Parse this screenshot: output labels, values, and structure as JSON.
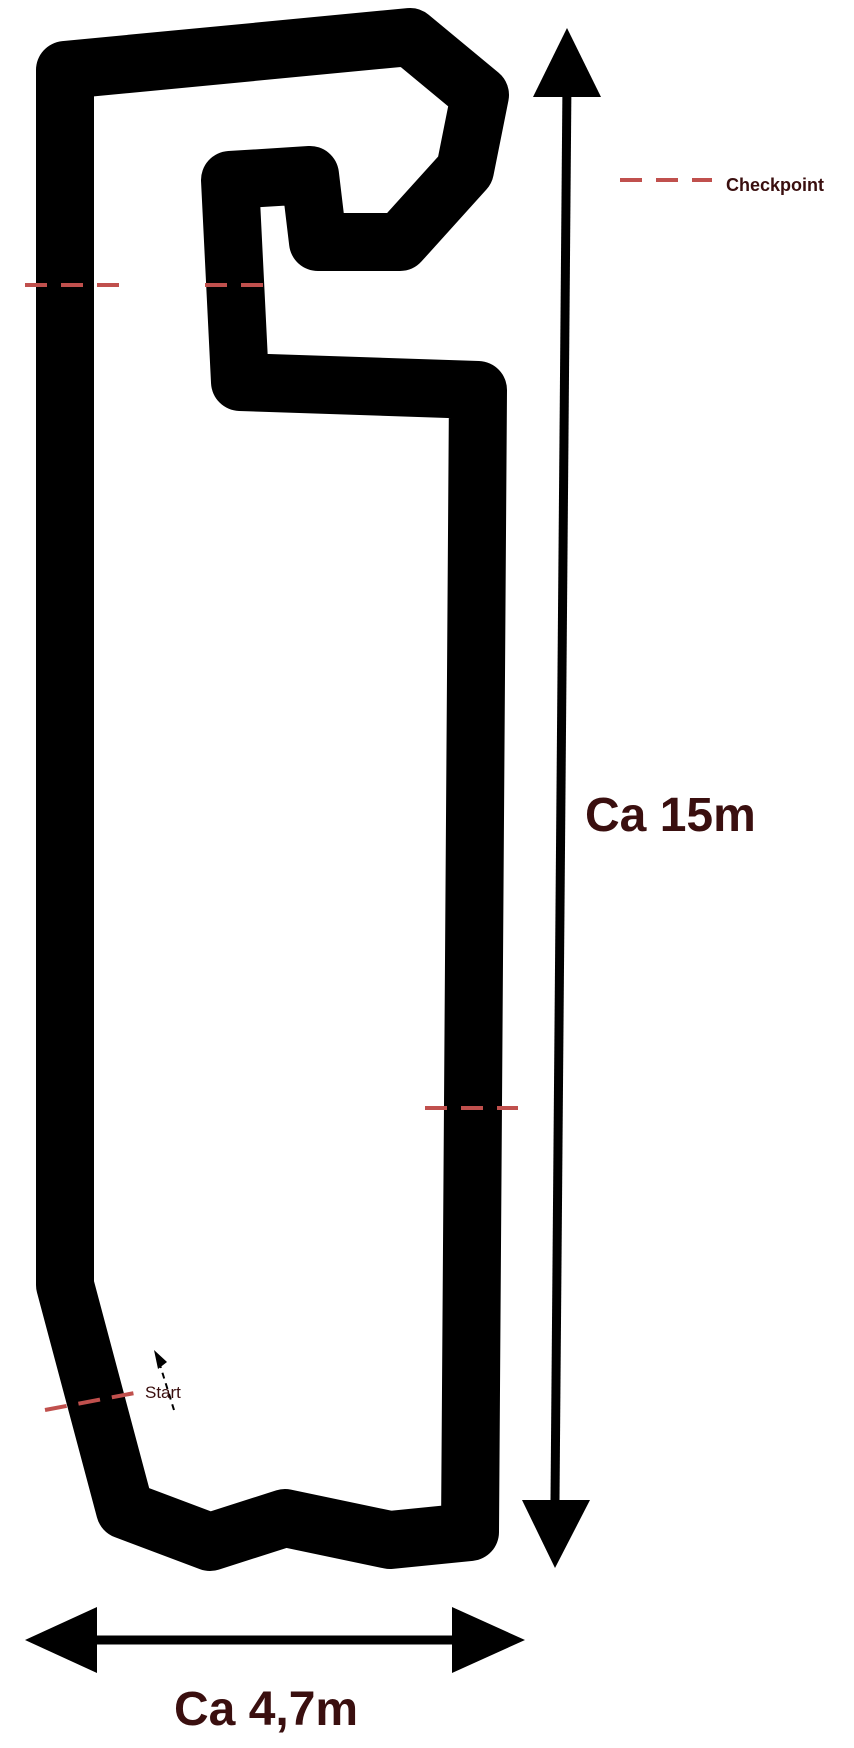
{
  "labels": {
    "checkpoint": "Checkpoint",
    "start": "Start",
    "height": "Ca 15m",
    "width": "Ca 4,7m"
  },
  "colors": {
    "track": "#000000",
    "checkpoint_line": "#c0504d",
    "label_text": "#3a0f0f",
    "background": "#ffffff"
  }
}
